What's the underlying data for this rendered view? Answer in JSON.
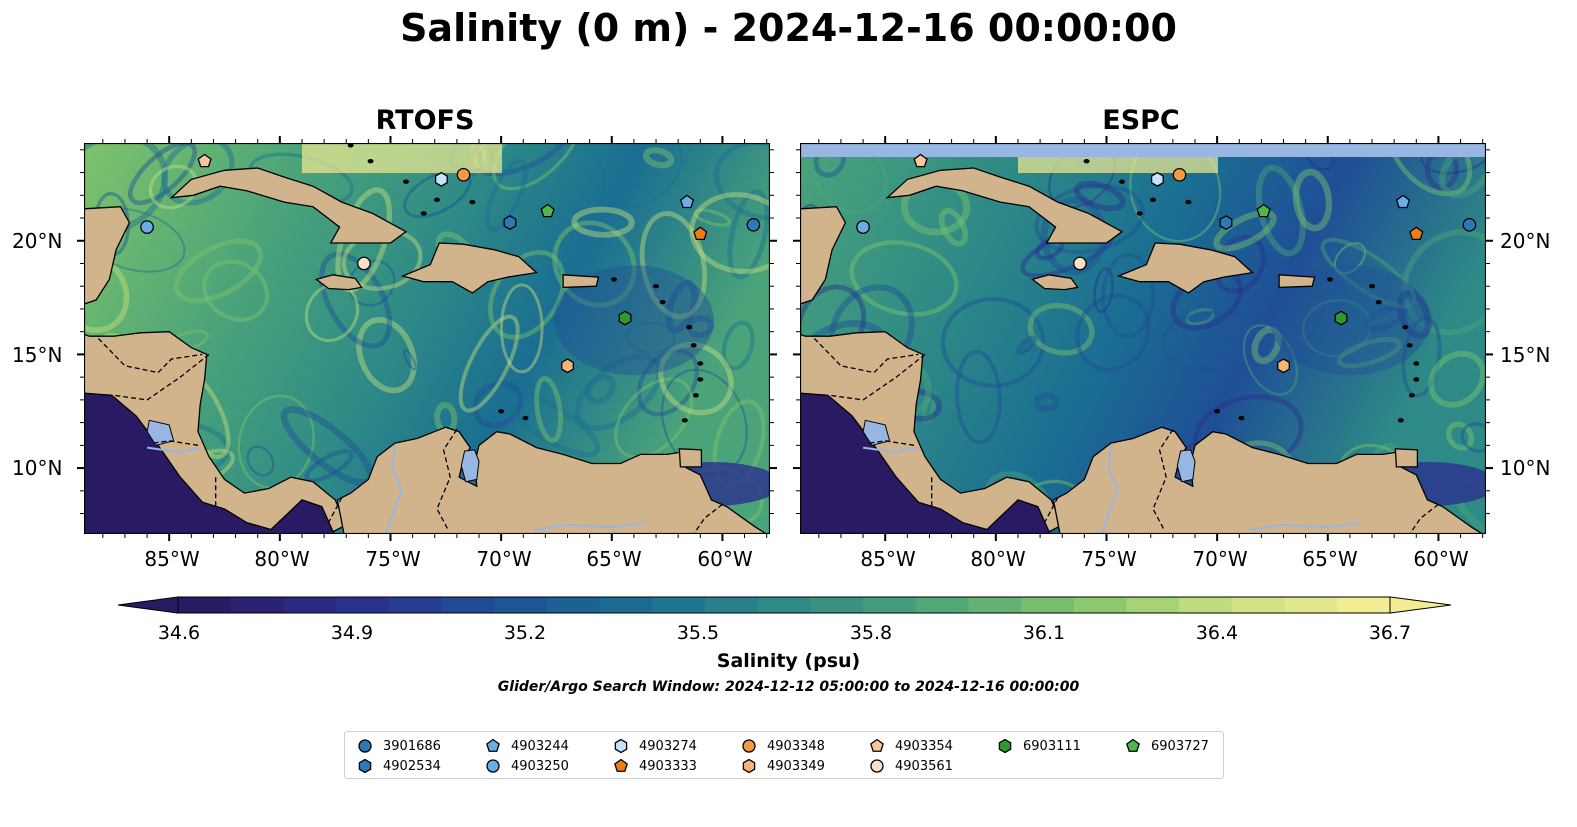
{
  "title": "Salinity (0 m) - 2024-12-16 00:00:00",
  "panels": [
    {
      "title": "RTOFS"
    },
    {
      "title": "ESPC"
    }
  ],
  "lat_labels": [
    "20°N",
    "15°N",
    "10°N"
  ],
  "lon_labels": [
    "85°W",
    "80°W",
    "75°W",
    "70°W",
    "65°W",
    "60°W"
  ],
  "colorbar": {
    "label": "Salinity (psu)",
    "ticks": [
      "34.6",
      "34.9",
      "35.2",
      "35.5",
      "35.8",
      "36.1",
      "36.4",
      "36.7"
    ],
    "vmin": 34.6,
    "vmax": 36.7,
    "colors": [
      "#2a1a63",
      "#2b2f8f",
      "#1f4f96",
      "#1a6e92",
      "#2e8a86",
      "#4ba479",
      "#7fc36b",
      "#c5e07d",
      "#f2ec93"
    ]
  },
  "search_window": "Glider/Argo Search Window: 2024-12-12 05:00:00 to 2024-12-16 00:00:00",
  "map_colors": {
    "land": "#d2b48c",
    "lake": "#97b6e1",
    "ocean_outside": "#2a1a63",
    "nodata_band": "#97b6e1"
  },
  "floats": [
    {
      "id": "3901686",
      "marker": "circle",
      "color": "#2a7ab8",
      "lon": -58.6,
      "lat": 20.7
    },
    {
      "id": "4902534",
      "marker": "hexagon",
      "color": "#2a7ab8",
      "lon": -69.6,
      "lat": 20.8
    },
    {
      "id": "4903244",
      "marker": "pentagon",
      "color": "#6aaee6",
      "lon": -61.6,
      "lat": 21.7
    },
    {
      "id": "4903250",
      "marker": "circle",
      "color": "#6aaee6",
      "lon": -86.0,
      "lat": 20.6
    },
    {
      "id": "4903274",
      "marker": "hexagon",
      "color": "#c5e3fb",
      "lon": -72.7,
      "lat": 22.7
    },
    {
      "id": "4903333",
      "marker": "pentagon",
      "color": "#f07d14",
      "lon": -61.0,
      "lat": 20.3
    },
    {
      "id": "4903348",
      "marker": "circle",
      "color": "#f59a45",
      "lon": -71.7,
      "lat": 22.9
    },
    {
      "id": "4903349",
      "marker": "hexagon",
      "color": "#f9b37a",
      "lon": -67.0,
      "lat": 14.5
    },
    {
      "id": "4903354",
      "marker": "pentagon",
      "color": "#fbc79a",
      "lon": -83.4,
      "lat": 23.5
    },
    {
      "id": "4903561",
      "marker": "circle",
      "color": "#fde0c5",
      "lon": -76.2,
      "lat": 19.0
    },
    {
      "id": "6903111",
      "marker": "hexagon",
      "color": "#2d9a2e",
      "lon": -64.4,
      "lat": 16.6
    },
    {
      "id": "6903727",
      "marker": "pentagon",
      "color": "#4fb84b",
      "lon": -67.9,
      "lat": 21.3
    }
  ]
}
